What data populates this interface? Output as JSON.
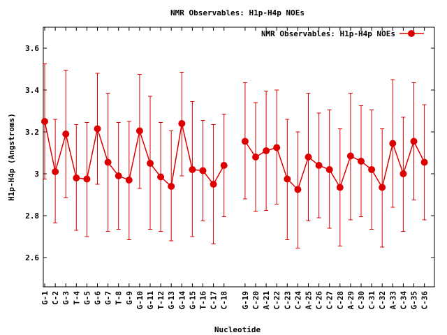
{
  "chart_data": {
    "type": "line",
    "title": "NMR Observables: H1p-H4p NOEs",
    "xlabel": "Nucleotide",
    "ylabel": "H1p-H4p (Angstroms)",
    "ylim": [
      2.46,
      3.7
    ],
    "yticks": [
      2.6,
      2.8,
      3,
      3.2,
      3.4,
      3.6
    ],
    "ytick_labels": [
      "2.6",
      "2.8",
      "3",
      "3.2",
      "3.4",
      "3.6"
    ],
    "grid": false,
    "legend_position": "top-right",
    "color": "#dd0000",
    "series": [
      {
        "name": "NMR Observables: H1p-H4p NOEs",
        "segments": [
          {
            "categories": [
              "G-1",
              "C-2",
              "G-3",
              "T-4",
              "G-5",
              "G-6",
              "G-7",
              "T-8",
              "G-9",
              "G-10",
              "G-11",
              "T-12",
              "G-13",
              "G-14",
              "G-15",
              "T-16",
              "C-17",
              "C-18"
            ],
            "values": [
              3.25,
              3.01,
              3.19,
              2.98,
              2.975,
              3.215,
              3.055,
              2.99,
              2.97,
              3.205,
              3.05,
              2.985,
              2.94,
              3.24,
              3.02,
              3.015,
              2.95,
              3.04
            ],
            "lower": [
              2.975,
              2.765,
              2.885,
              2.73,
              2.7,
              2.95,
              2.725,
              2.735,
              2.685,
              2.93,
              2.735,
              2.725,
              2.68,
              2.99,
              2.7,
              2.775,
              2.665,
              2.795
            ],
            "upper": [
              3.525,
              3.26,
              3.495,
              3.235,
              3.245,
              3.48,
              3.385,
              3.245,
              3.25,
              3.475,
              3.37,
              3.245,
              3.205,
              3.485,
              3.345,
              3.255,
              3.235,
              3.285
            ]
          },
          {
            "categories": [
              "G-19",
              "C-20",
              "A-21",
              "C-22",
              "C-23",
              "C-24",
              "A-25",
              "C-26",
              "C-27",
              "C-28",
              "A-29",
              "C-30",
              "C-31",
              "C-32",
              "A-33",
              "C-34",
              "G-35",
              "C-36"
            ],
            "values": [
              3.155,
              3.08,
              3.11,
              3.125,
              2.975,
              2.925,
              3.08,
              3.04,
              3.02,
              2.935,
              3.085,
              3.06,
              3.02,
              2.935,
              3.145,
              3.0,
              3.155,
              3.055
            ],
            "lower": [
              2.88,
              2.82,
              2.825,
              2.855,
              2.685,
              2.645,
              2.775,
              2.79,
              2.74,
              2.655,
              2.78,
              2.795,
              2.735,
              2.65,
              2.84,
              2.725,
              2.875,
              2.78
            ],
            "upper": [
              3.435,
              3.34,
              3.395,
              3.4,
              3.26,
              3.2,
              3.385,
              3.29,
              3.305,
              3.215,
              3.385,
              3.325,
              3.305,
              3.215,
              3.45,
              3.27,
              3.435,
              3.33
            ]
          }
        ]
      }
    ]
  }
}
